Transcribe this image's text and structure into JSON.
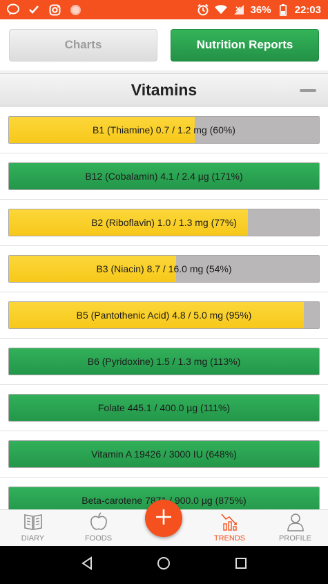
{
  "status_bar": {
    "battery": "36%",
    "time": "22:03"
  },
  "top_toggle": {
    "charts_label": "Charts",
    "reports_label": "Nutrition Reports"
  },
  "section": {
    "title": "Vitamins"
  },
  "colors": {
    "accent": "#f4511e",
    "green": "#2aa552",
    "yellow": "#fcd128",
    "gray": "#b9b7b7"
  },
  "nutrients": [
    {
      "label": "B1 (Thiamine) 0.7 / 1.2 mg (60%)",
      "percent": 60,
      "status": "yellow"
    },
    {
      "label": "B12 (Cobalamin) 4.1 / 2.4 µg (171%)",
      "percent": 171,
      "status": "green"
    },
    {
      "label": "B2 (Riboflavin) 1.0 / 1.3 mg (77%)",
      "percent": 77,
      "status": "yellow"
    },
    {
      "label": "B3 (Niacin) 8.7 / 16.0 mg (54%)",
      "percent": 54,
      "status": "yellow"
    },
    {
      "label": "B5 (Pantothenic Acid) 4.8 / 5.0 mg (95%)",
      "percent": 95,
      "status": "yellow"
    },
    {
      "label": "B6 (Pyridoxine) 1.5 / 1.3 mg (113%)",
      "percent": 113,
      "status": "green"
    },
    {
      "label": "Folate 445.1 / 400.0 µg (111%)",
      "percent": 111,
      "status": "green"
    },
    {
      "label": "Vitamin A 19426 / 3000 IU (648%)",
      "percent": 648,
      "status": "green"
    },
    {
      "label": "Beta-carotene 7871 / 900.0 µg (875%)",
      "percent": 875,
      "status": "green"
    }
  ],
  "bottom_nav": {
    "diary": "DIARY",
    "foods": "FOODS",
    "trends": "TRENDS",
    "profile": "PROFILE"
  }
}
